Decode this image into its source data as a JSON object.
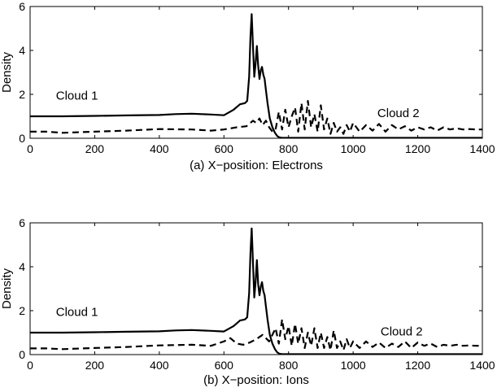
{
  "chart_data": [
    {
      "type": "line",
      "xlabel": "(a) X−position: Electrons",
      "ylabel": "Density",
      "xlim": [
        0,
        1400
      ],
      "ylim": [
        0,
        6
      ],
      "xticks": [
        "0",
        "200",
        "400",
        "600",
        "800",
        "1000",
        "1200",
        "1400"
      ],
      "yticks": [
        "0",
        "2",
        "4",
        "6"
      ],
      "grid": false,
      "annotations": [
        {
          "text": "Cloud 1",
          "x": 80,
          "y": 1.95
        },
        {
          "text": "Cloud 2",
          "x": 1075,
          "y": 1.15
        }
      ],
      "series": [
        {
          "style": "solid",
          "x": [
            0,
            100,
            200,
            300,
            400,
            450,
            500,
            560,
            600,
            630,
            650,
            665,
            672,
            678,
            682,
            686,
            690,
            694,
            698,
            702,
            706,
            710,
            714,
            718,
            722,
            726,
            730,
            735,
            742,
            750,
            758,
            765,
            772,
            780,
            800,
            900,
            1000,
            1100,
            1200,
            1300,
            1400
          ],
          "y": [
            1.0,
            1.0,
            1.02,
            1.04,
            1.06,
            1.1,
            1.12,
            1.08,
            1.05,
            1.3,
            1.55,
            1.6,
            1.7,
            2.8,
            4.6,
            5.65,
            4.2,
            2.8,
            3.4,
            4.2,
            3.3,
            2.7,
            3.1,
            3.25,
            2.9,
            2.7,
            2.2,
            1.6,
            0.9,
            0.5,
            0.25,
            0.1,
            0.04,
            0.02,
            0.02,
            0.02,
            0.02,
            0.02,
            0.02,
            0.02,
            0.02
          ]
        },
        {
          "style": "dashed",
          "x": [
            0,
            50,
            100,
            200,
            300,
            400,
            500,
            560,
            600,
            640,
            670,
            690,
            700,
            710,
            720,
            730,
            740,
            750,
            760,
            770,
            780,
            790,
            800,
            810,
            820,
            830,
            840,
            850,
            860,
            870,
            880,
            890,
            900,
            910,
            920,
            930,
            940,
            950,
            960,
            970,
            980,
            990,
            1000,
            1020,
            1040,
            1060,
            1080,
            1100,
            1120,
            1140,
            1160,
            1180,
            1200,
            1220,
            1240,
            1260,
            1280,
            1300,
            1320,
            1340,
            1360,
            1380,
            1400
          ],
          "y": [
            0.3,
            0.3,
            0.25,
            0.3,
            0.35,
            0.42,
            0.4,
            0.35,
            0.4,
            0.5,
            0.55,
            0.8,
            0.7,
            0.9,
            0.6,
            0.8,
            0.5,
            0.3,
            0.4,
            1.2,
            0.4,
            1.3,
            0.5,
            1.0,
            1.4,
            0.3,
            1.6,
            0.4,
            1.7,
            0.5,
            1.1,
            0.3,
            1.5,
            0.4,
            0.9,
            0.2,
            0.7,
            0.3,
            0.5,
            0.2,
            0.6,
            0.3,
            0.7,
            0.3,
            0.6,
            0.35,
            0.65,
            0.3,
            0.6,
            0.4,
            0.55,
            0.35,
            0.5,
            0.4,
            0.5,
            0.35,
            0.5,
            0.4,
            0.45,
            0.4,
            0.42,
            0.4,
            0.4
          ]
        }
      ]
    },
    {
      "type": "line",
      "xlabel": "(b) X−position: Ions",
      "ylabel": "Density",
      "xlim": [
        0,
        1400
      ],
      "ylim": [
        0,
        6
      ],
      "xticks": [
        "0",
        "200",
        "400",
        "600",
        "800",
        "1000",
        "1200",
        "1400"
      ],
      "yticks": [
        "0",
        "2",
        "4",
        "6"
      ],
      "grid": false,
      "annotations": [
        {
          "text": "Cloud 1",
          "x": 80,
          "y": 1.95
        },
        {
          "text": "Cloud 2",
          "x": 1085,
          "y": 1.05
        }
      ],
      "series": [
        {
          "style": "solid",
          "x": [
            0,
            100,
            200,
            300,
            400,
            450,
            500,
            560,
            600,
            630,
            650,
            665,
            672,
            678,
            682,
            686,
            690,
            694,
            698,
            702,
            706,
            710,
            714,
            718,
            722,
            726,
            730,
            735,
            742,
            750,
            758,
            765,
            772,
            780,
            800,
            900,
            1000,
            1100,
            1200,
            1300,
            1400
          ],
          "y": [
            1.0,
            1.0,
            1.02,
            1.04,
            1.06,
            1.1,
            1.12,
            1.08,
            1.05,
            1.3,
            1.55,
            1.6,
            1.7,
            2.8,
            4.6,
            5.75,
            4.2,
            2.6,
            3.3,
            4.3,
            3.2,
            2.7,
            3.1,
            3.3,
            2.9,
            2.7,
            2.2,
            1.6,
            0.9,
            0.5,
            0.25,
            0.1,
            0.04,
            0.02,
            0.02,
            0.02,
            0.02,
            0.02,
            0.02,
            0.02,
            0.02
          ]
        },
        {
          "style": "dashed",
          "x": [
            0,
            50,
            100,
            200,
            300,
            400,
            500,
            560,
            600,
            620,
            640,
            660,
            680,
            700,
            720,
            740,
            760,
            770,
            780,
            790,
            800,
            810,
            820,
            830,
            840,
            850,
            860,
            870,
            880,
            890,
            900,
            910,
            920,
            930,
            940,
            950,
            960,
            970,
            980,
            990,
            1000,
            1020,
            1040,
            1060,
            1080,
            1100,
            1120,
            1140,
            1160,
            1180,
            1200,
            1220,
            1240,
            1260,
            1280,
            1300,
            1320,
            1340,
            1360,
            1380,
            1400
          ],
          "y": [
            0.28,
            0.28,
            0.25,
            0.3,
            0.35,
            0.42,
            0.45,
            0.4,
            0.6,
            0.75,
            0.5,
            0.45,
            0.55,
            0.7,
            0.9,
            0.6,
            1.2,
            0.5,
            1.6,
            0.7,
            1.3,
            0.4,
            1.4,
            0.5,
            1.2,
            0.3,
            1.0,
            0.4,
            1.2,
            0.3,
            1.0,
            0.3,
            0.8,
            0.2,
            1.1,
            0.3,
            0.6,
            0.2,
            0.7,
            0.3,
            0.6,
            0.3,
            0.6,
            0.35,
            0.55,
            0.3,
            0.5,
            0.35,
            0.6,
            0.3,
            0.55,
            0.4,
            0.5,
            0.35,
            0.45,
            0.4,
            0.45,
            0.4,
            0.42,
            0.4,
            0.4
          ]
        }
      ]
    }
  ]
}
